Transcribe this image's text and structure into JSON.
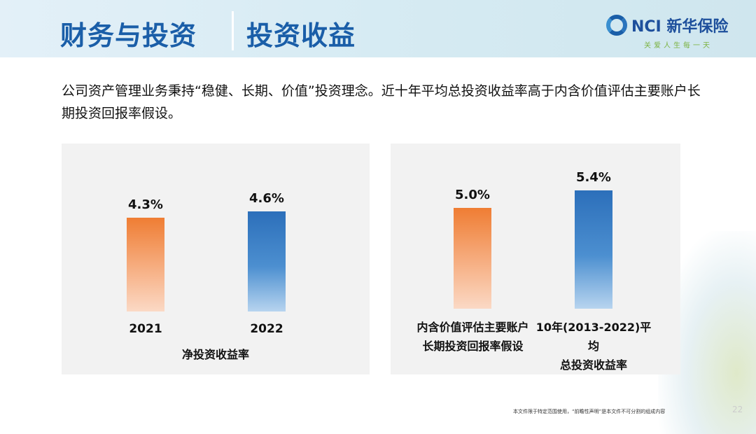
{
  "header": {
    "title_left": "财务与投资",
    "title_right": "投资收益",
    "logo_text": "NCI 新华保险",
    "slogan": "关爱人生每一天"
  },
  "intro": "公司资产管理业务秉持“稳健、长期、价值”投资理念。近十年平均总投资收益率高于内含价值评估主要账户长期投资回报率假设。",
  "chart_data": [
    {
      "type": "bar",
      "title": "",
      "xlabel": "净投资收益率",
      "categories": [
        "2021",
        "2022"
      ],
      "values": [
        4.3,
        4.6
      ],
      "labels": [
        "4.3%",
        "4.6%"
      ],
      "colors": [
        "#ef7d33",
        "#2c6fba"
      ],
      "ylim": [
        0,
        5.45
      ],
      "grid": false
    },
    {
      "type": "bar",
      "title": "",
      "xlabel": "",
      "categories": [
        [
          "内含价值评估主要账户",
          "长期投资回报率假设"
        ],
        [
          "10年(2013-2022)平均",
          "总投资收益率"
        ]
      ],
      "values": [
        5.0,
        5.4
      ],
      "labels": [
        "5.0%",
        "5.4%"
      ],
      "colors": [
        "#ef7d33",
        "#2c6fba"
      ],
      "ylim": [
        2.7,
        5.42
      ],
      "grid": false
    }
  ],
  "footer": {
    "note": "本文件限于特定范围使用，“前瞻性声明”是本文件不可分割的组成内容",
    "page": "22"
  }
}
